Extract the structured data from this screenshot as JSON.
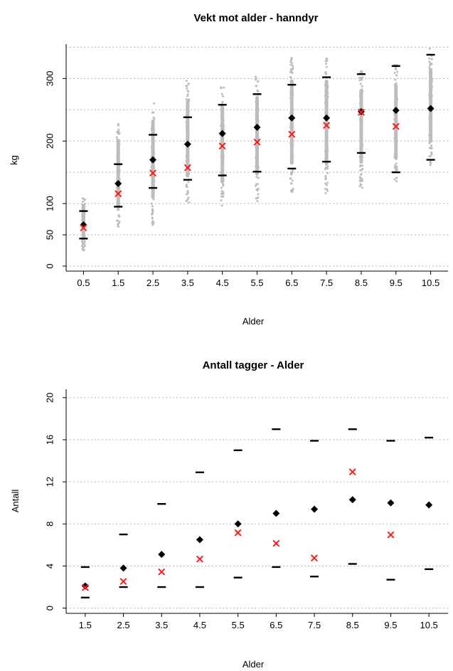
{
  "colors": {
    "raw": "#bdbdbd",
    "mean": "#000000",
    "median": "#ff1c1c",
    "grid": "#b8b8b8"
  },
  "chart_data": [
    {
      "type": "scatter",
      "title": "Vekt mot alder - hanndyr",
      "xlabel": "Alder",
      "ylabel": "kg",
      "xticks": [
        "0.5",
        "1.5",
        "2.5",
        "3.5",
        "4.5",
        "5.5",
        "6.5",
        "7.5",
        "8.5",
        "9.5",
        "10.5"
      ],
      "yticks": [
        0,
        50,
        100,
        200,
        300
      ],
      "gridlines": [
        0,
        50,
        100,
        150,
        200,
        250,
        300,
        350
      ],
      "ylim": [
        -8,
        355
      ],
      "grid": true,
      "x": [
        0.5,
        1.5,
        2.5,
        3.5,
        4.5,
        5.5,
        6.5,
        7.5,
        8.5,
        9.5,
        10.5
      ],
      "raw_range": [
        [
          25,
          112
        ],
        [
          58,
          232
        ],
        [
          66,
          268
        ],
        [
          101,
          298
        ],
        [
          92,
          290
        ],
        [
          103,
          305
        ],
        [
          117,
          335
        ],
        [
          115,
          335
        ],
        [
          125,
          314
        ],
        [
          130,
          323
        ],
        [
          158,
          348
        ]
      ],
      "series": [
        {
          "marker": "diamond",
          "values": [
            66,
            132,
            170,
            195,
            212,
            222,
            237,
            237,
            247,
            249,
            252
          ]
        },
        {
          "marker": "x",
          "values": [
            62,
            117,
            150,
            158,
            193,
            199,
            212,
            226,
            247,
            224,
            null
          ]
        },
        {
          "marker": "dash-high",
          "values": [
            88,
            163,
            210,
            238,
            258,
            275,
            290,
            302,
            307,
            320,
            338
          ]
        },
        {
          "marker": "dash-low",
          "values": [
            44,
            95,
            125,
            138,
            145,
            151,
            156,
            167,
            181,
            150,
            170
          ]
        }
      ]
    },
    {
      "type": "scatter",
      "title": "Antall tagger - Alder",
      "xlabel": "Alder",
      "ylabel": "Antall",
      "xticks": [
        "1.5",
        "2.5",
        "3.5",
        "4.5",
        "5.5",
        "6.5",
        "7.5",
        "8.5",
        "9.5",
        "10.5"
      ],
      "yticks": [
        0,
        4,
        8,
        12,
        16,
        20
      ],
      "gridlines": [
        0,
        4,
        8,
        12,
        16,
        20
      ],
      "ylim": [
        -0.5,
        20.8
      ],
      "grid": true,
      "x": [
        1.5,
        2.5,
        3.5,
        4.5,
        5.5,
        6.5,
        7.5,
        8.5,
        9.5,
        10.5
      ],
      "series": [
        {
          "marker": "diamond",
          "values": [
            2.1,
            3.8,
            5.1,
            6.5,
            8.0,
            9.0,
            9.4,
            10.3,
            10.0,
            9.8
          ]
        },
        {
          "marker": "x",
          "values": [
            2.0,
            2.6,
            3.5,
            4.7,
            7.2,
            6.2,
            4.8,
            13.0,
            7.0,
            null
          ]
        },
        {
          "marker": "dash-high",
          "values": [
            3.9,
            7.0,
            9.9,
            12.9,
            15.0,
            17.0,
            15.9,
            17.0,
            15.9,
            16.2
          ]
        },
        {
          "marker": "dash-low",
          "values": [
            1.0,
            2.0,
            2.0,
            2.0,
            2.9,
            3.9,
            3.0,
            4.2,
            2.7,
            3.7
          ]
        }
      ]
    }
  ]
}
